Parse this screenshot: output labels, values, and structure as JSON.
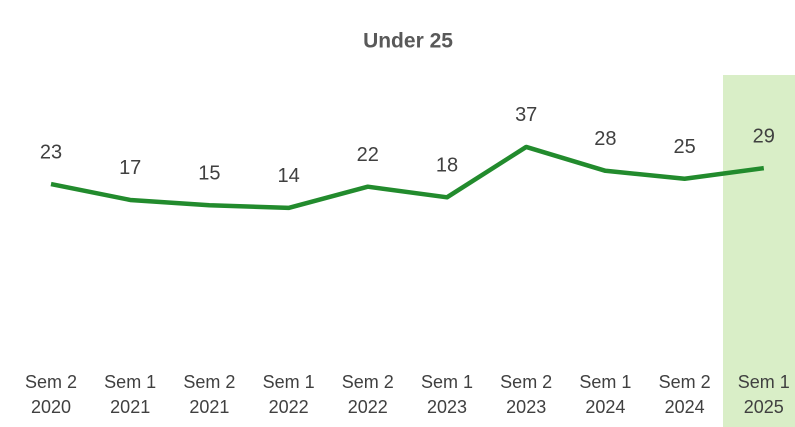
{
  "chart_data": {
    "type": "line",
    "title": "Under 25",
    "categories": [
      [
        "Sem 2",
        "2020"
      ],
      [
        "Sem 1",
        "2021"
      ],
      [
        "Sem 2",
        "2021"
      ],
      [
        "Sem 1",
        "2022"
      ],
      [
        "Sem 2",
        "2022"
      ],
      [
        "Sem 1",
        "2023"
      ],
      [
        "Sem 2",
        "2023"
      ],
      [
        "Sem 1",
        "2024"
      ],
      [
        "Sem 2",
        "2024"
      ],
      [
        "Sem 1",
        "2025"
      ]
    ],
    "series": [
      {
        "name": "Under 25",
        "color": "#228b2d",
        "values": [
          23,
          17,
          15,
          14,
          22,
          18,
          37,
          28,
          25,
          29
        ]
      }
    ],
    "ylim": [
      -40,
      60
    ]
  }
}
